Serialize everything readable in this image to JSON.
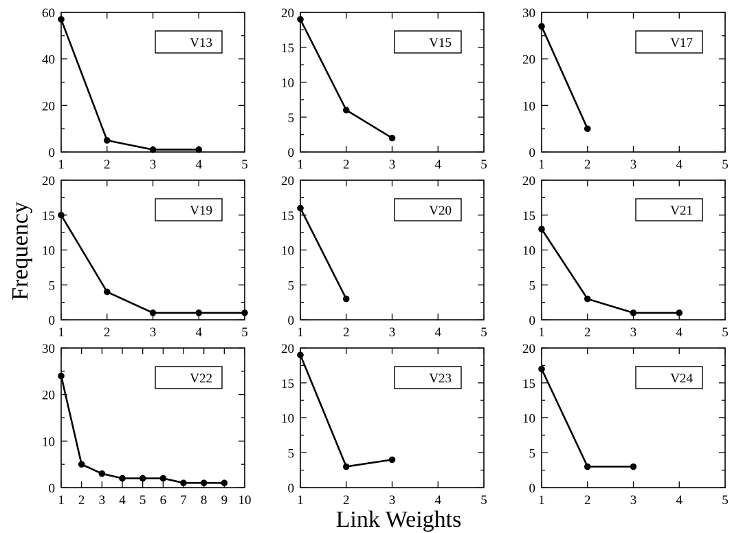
{
  "figure": {
    "ylabel": "Frequency",
    "xlabel": "Link Weights"
  },
  "chart_data": [
    {
      "type": "line",
      "legend": "V13",
      "xlim": [
        1,
        5
      ],
      "ylim": [
        0,
        60
      ],
      "xticks": [
        1,
        2,
        3,
        4,
        5
      ],
      "yticks": [
        0,
        20,
        40,
        60
      ],
      "x": [
        1,
        2,
        3,
        4
      ],
      "y": [
        57,
        5,
        1,
        1
      ]
    },
    {
      "type": "line",
      "legend": "V15",
      "xlim": [
        1,
        5
      ],
      "ylim": [
        0,
        20
      ],
      "xticks": [
        1,
        2,
        3,
        4,
        5
      ],
      "yticks": [
        0,
        5,
        10,
        15,
        20
      ],
      "x": [
        1,
        2,
        3
      ],
      "y": [
        19,
        6,
        2
      ]
    },
    {
      "type": "line",
      "legend": "V17",
      "xlim": [
        1,
        5
      ],
      "ylim": [
        0,
        30
      ],
      "xticks": [
        1,
        2,
        3,
        4,
        5
      ],
      "yticks": [
        0,
        10,
        20,
        30
      ],
      "x": [
        1,
        2
      ],
      "y": [
        27,
        5
      ]
    },
    {
      "type": "line",
      "legend": "V19",
      "xlim": [
        1,
        5
      ],
      "ylim": [
        0,
        20
      ],
      "xticks": [
        1,
        2,
        3,
        4,
        5
      ],
      "yticks": [
        0,
        5,
        10,
        15,
        20
      ],
      "x": [
        1,
        2,
        3,
        4,
        5
      ],
      "y": [
        15,
        4,
        1,
        1,
        1
      ]
    },
    {
      "type": "line",
      "legend": "V20",
      "xlim": [
        1,
        5
      ],
      "ylim": [
        0,
        20
      ],
      "xticks": [
        1,
        2,
        3,
        4,
        5
      ],
      "yticks": [
        0,
        5,
        10,
        15,
        20
      ],
      "x": [
        1,
        2
      ],
      "y": [
        16,
        3
      ]
    },
    {
      "type": "line",
      "legend": "V21",
      "xlim": [
        1,
        5
      ],
      "ylim": [
        0,
        20
      ],
      "xticks": [
        1,
        2,
        3,
        4,
        5
      ],
      "yticks": [
        0,
        5,
        10,
        15,
        20
      ],
      "x": [
        1,
        2,
        3,
        4
      ],
      "y": [
        13,
        3,
        1,
        1
      ]
    },
    {
      "type": "line",
      "legend": "V22",
      "xlim": [
        1,
        10
      ],
      "ylim": [
        0,
        30
      ],
      "xticks": [
        1,
        2,
        3,
        4,
        5,
        6,
        7,
        8,
        9,
        10
      ],
      "yticks": [
        0,
        10,
        20,
        30
      ],
      "x": [
        1,
        2,
        3,
        4,
        5,
        6,
        7,
        8,
        9
      ],
      "y": [
        24,
        5,
        3,
        2,
        2,
        2,
        1,
        1,
        1
      ]
    },
    {
      "type": "line",
      "legend": "V23",
      "xlim": [
        1,
        5
      ],
      "ylim": [
        0,
        20
      ],
      "xticks": [
        1,
        2,
        3,
        4,
        5
      ],
      "yticks": [
        0,
        5,
        10,
        15,
        20
      ],
      "x": [
        1,
        2,
        3
      ],
      "y": [
        19,
        3,
        4
      ]
    },
    {
      "type": "line",
      "legend": "V24",
      "xlim": [
        1,
        5
      ],
      "ylim": [
        0,
        20
      ],
      "xticks": [
        1,
        2,
        3,
        4,
        5
      ],
      "yticks": [
        0,
        5,
        10,
        15,
        20
      ],
      "x": [
        1,
        2,
        3
      ],
      "y": [
        17,
        3,
        3
      ]
    }
  ]
}
